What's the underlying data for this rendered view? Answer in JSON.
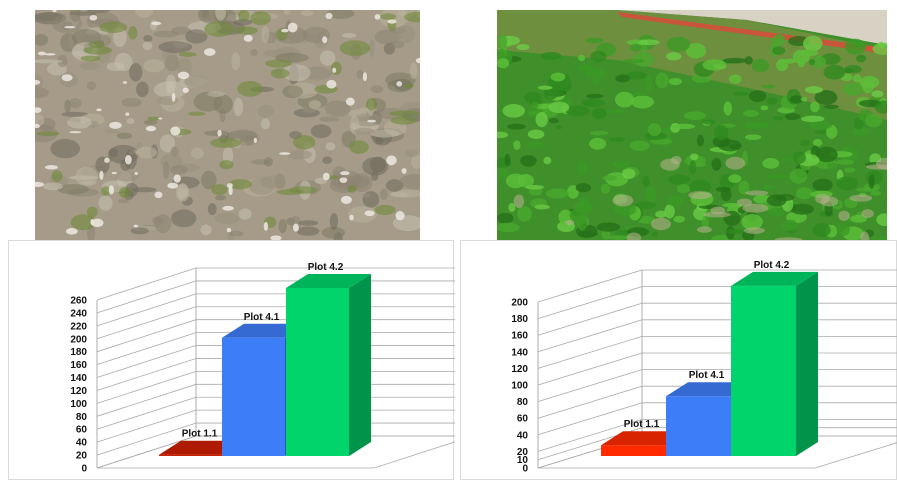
{
  "photos": [
    {
      "subject": "bare-soil-photo"
    },
    {
      "subject": "vegetated-plot-photo"
    }
  ],
  "chart_data": [
    {
      "type": "bar",
      "categories": [
        "Plot 1.1",
        "Plot 4.1",
        "Plot 4.2"
      ],
      "values": [
        2,
        183,
        260
      ],
      "colors": [
        "#cc1f00",
        "#3d7df7",
        "#00d46a"
      ],
      "ylim": [
        0,
        260
      ],
      "yticks": [
        0,
        20,
        40,
        60,
        80,
        100,
        120,
        140,
        160,
        180,
        200,
        220,
        240,
        260
      ],
      "grid": true,
      "style": "3d"
    },
    {
      "type": "bar",
      "categories": [
        "Plot 1.1",
        "Plot 4.1",
        "Plot 4.2"
      ],
      "values": [
        13,
        72,
        205
      ],
      "colors": [
        "#ff2a00",
        "#3d7df7",
        "#00d46a"
      ],
      "ylim": [
        0,
        200
      ],
      "yticks": [
        0,
        10,
        20,
        40,
        60,
        80,
        100,
        120,
        140,
        160,
        180,
        200
      ],
      "grid": true,
      "style": "3d"
    }
  ]
}
